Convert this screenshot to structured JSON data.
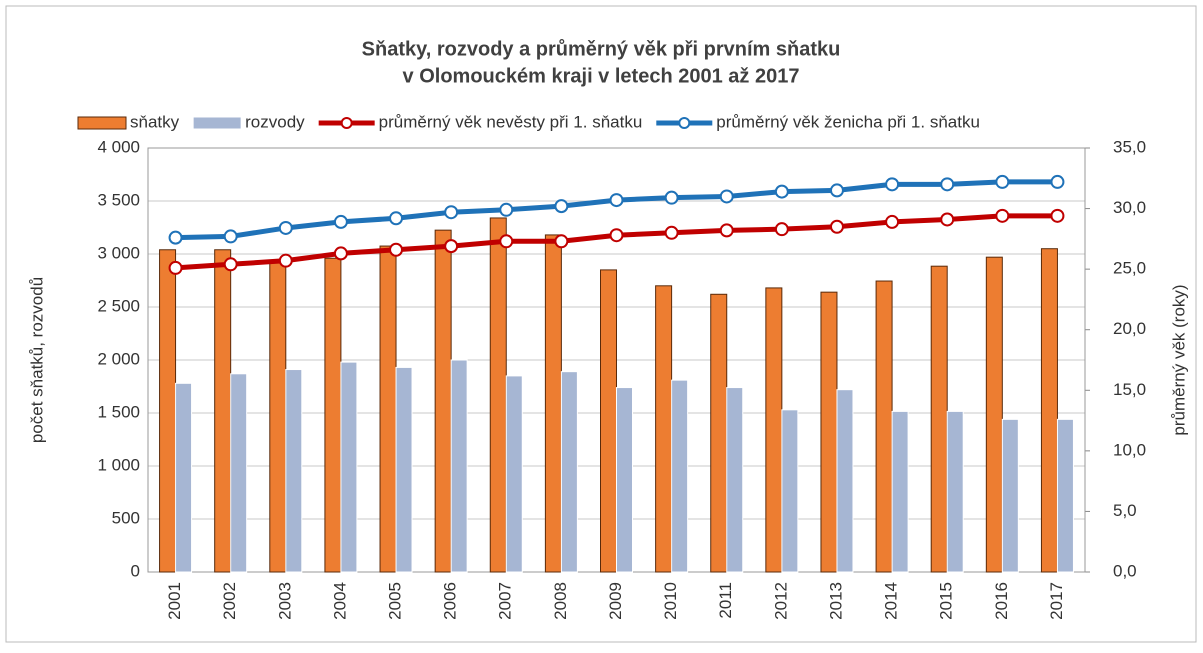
{
  "chart_data": {
    "type": "bar",
    "title": "Sňatky, rozvody a průměrný věk při prvním sňatku",
    "subtitle": "v Olomouckém kraji v letech 2001 až 2017",
    "ylabel": "počet sňatků, rozvodů",
    "y2label": "průměrný věk (roky)",
    "categories": [
      "2001",
      "2002",
      "2003",
      "2004",
      "2005",
      "2006",
      "2007",
      "2008",
      "2009",
      "2010",
      "2011",
      "2012",
      "2013",
      "2014",
      "2015",
      "2016",
      "2017"
    ],
    "series": [
      {
        "name": "sňatky",
        "type": "bar",
        "color": "#ed7d31",
        "values": [
          3040,
          3040,
          2915,
          2960,
          3075,
          3225,
          3340,
          3180,
          2850,
          2700,
          2620,
          2680,
          2640,
          2745,
          2885,
          2970,
          3050
        ]
      },
      {
        "name": "rozvody",
        "type": "bar",
        "color": "#a6b6d3",
        "values": [
          1780,
          1870,
          1910,
          1980,
          1930,
          2000,
          1850,
          1890,
          1740,
          1810,
          1740,
          1530,
          1720,
          1515,
          1515,
          1440,
          1440
        ]
      },
      {
        "name": "průměrný věk nevěsty při 1. sňatku",
        "type": "line",
        "axis": "y2",
        "color": "#c00000",
        "values": [
          25.1,
          25.4,
          25.7,
          26.3,
          26.6,
          26.9,
          27.3,
          27.3,
          27.8,
          28.0,
          28.2,
          28.3,
          28.5,
          28.9,
          29.1,
          29.4,
          29.4
        ]
      },
      {
        "name": "průměrný věk ženicha při 1. sňatku",
        "type": "line",
        "axis": "y2",
        "color": "#1f72b8",
        "values": [
          27.6,
          27.7,
          28.4,
          28.9,
          29.2,
          29.7,
          29.9,
          30.2,
          30.7,
          30.9,
          31.0,
          31.4,
          31.5,
          32.0,
          32.0,
          32.2,
          32.2
        ]
      }
    ],
    "ylim": [
      0,
      4000
    ],
    "yticks": [
      0,
      500,
      {
        "value": 1000,
        "label": "1 000"
      },
      {
        "value": 1500,
        "label": "1 500"
      },
      {
        "value": 2000,
        "label": "2 000"
      },
      {
        "value": 2500,
        "label": "2 500"
      },
      {
        "value": 3000,
        "label": "3 000"
      },
      {
        "value": 3500,
        "label": "3 500"
      },
      {
        "value": 4000,
        "label": "4 000"
      }
    ],
    "y2lim": [
      0,
      35
    ],
    "y2ticks": [
      {
        "value": 0,
        "label": "0,0"
      },
      {
        "value": 5,
        "label": "5,0"
      },
      {
        "value": 10,
        "label": "10,0"
      },
      {
        "value": 15,
        "label": "15,0"
      },
      {
        "value": 20,
        "label": "20,0"
      },
      {
        "value": 25,
        "label": "25,0"
      },
      {
        "value": 30,
        "label": "30,0"
      },
      {
        "value": 35,
        "label": "35,0"
      }
    ],
    "grid": true,
    "legend": "top"
  }
}
